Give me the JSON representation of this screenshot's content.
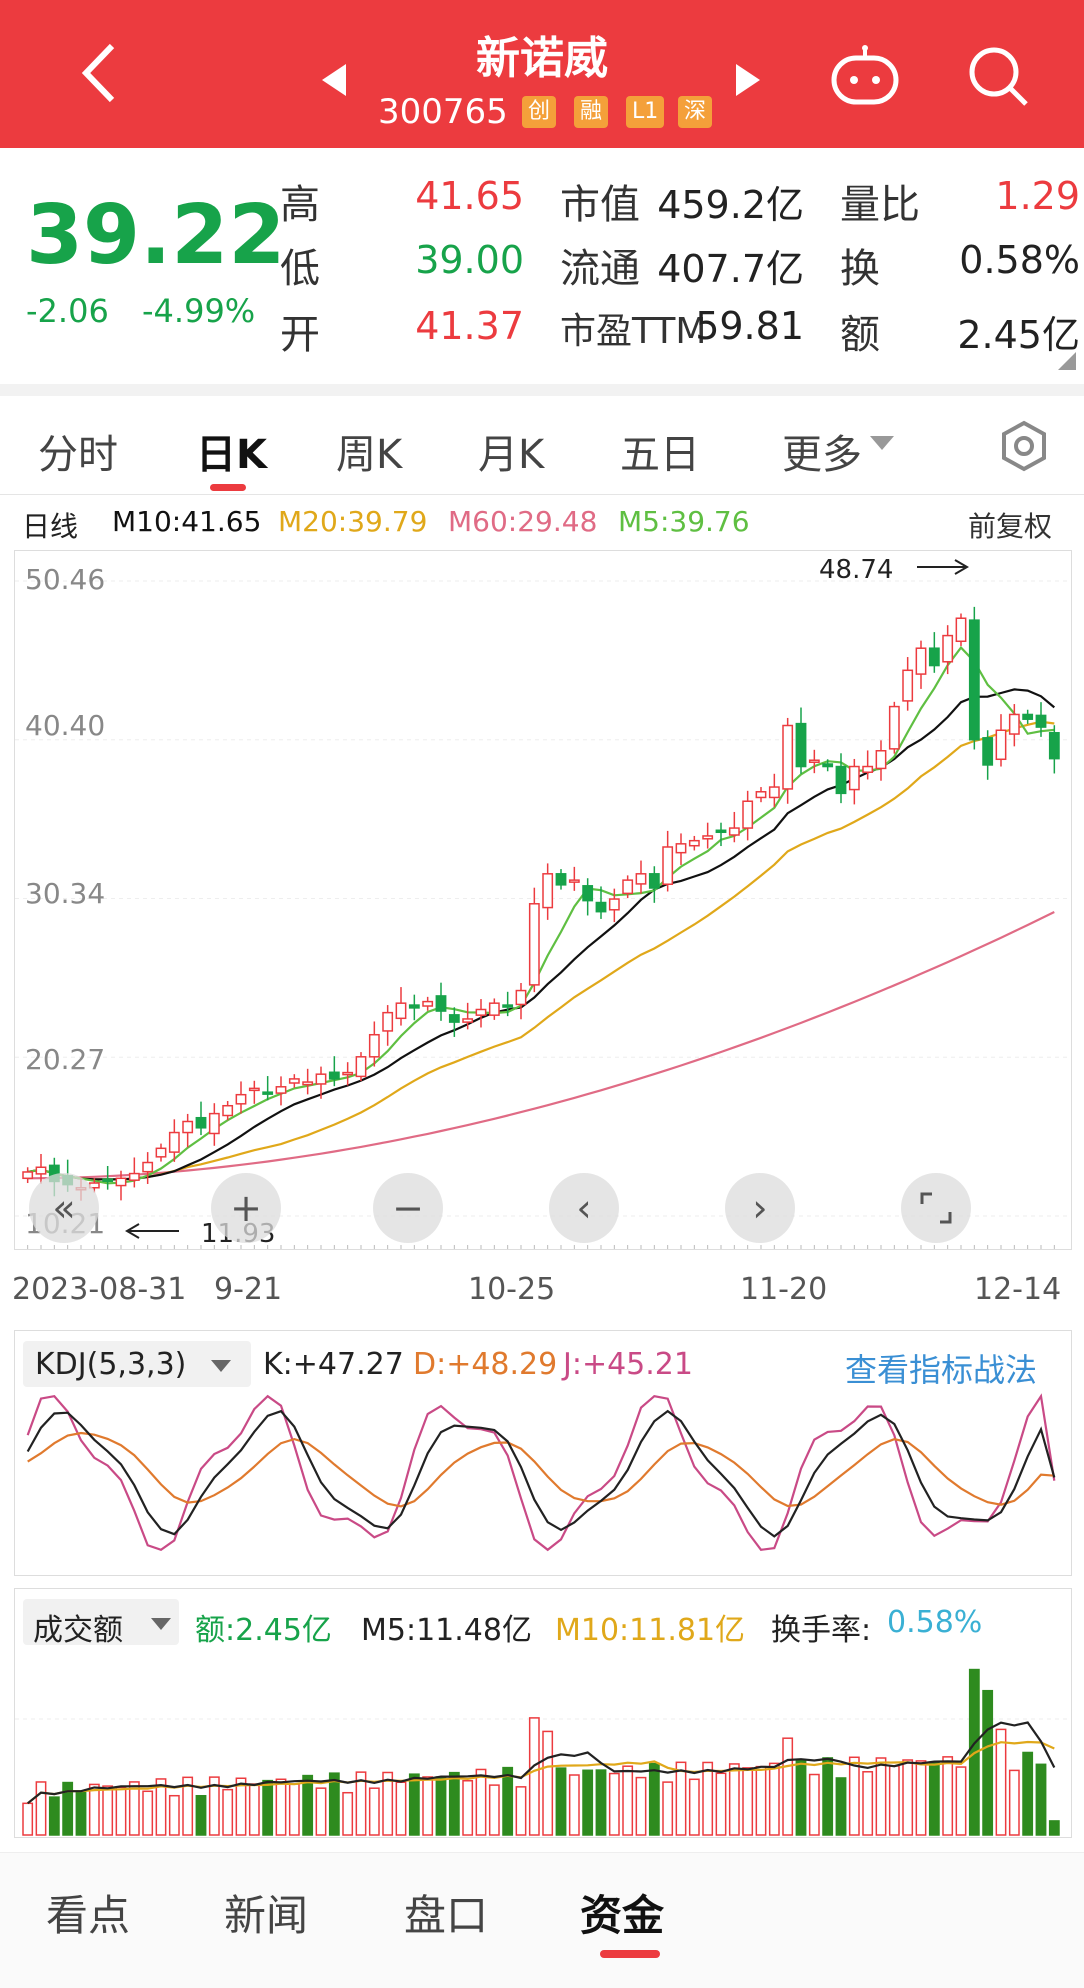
{
  "header": {
    "title": "新诺威",
    "code": "300765",
    "tags": [
      "创",
      "融",
      "L1",
      "深"
    ]
  },
  "quote": {
    "price": "39.22",
    "change": "-2.06",
    "change_pct": "-4.99%",
    "rows": [
      {
        "l1": "高",
        "v1": "41.65",
        "l2": "市值",
        "v2": "459.2亿",
        "l3": "量比",
        "v3": "1.29"
      },
      {
        "l1": "低",
        "v1": "39.00",
        "l2": "流通",
        "v2": "407.7亿",
        "l3": "换",
        "v3": "0.58%"
      },
      {
        "l1": "开",
        "v1": "41.37",
        "l2": "市盈TTM",
        "v2": "59.81",
        "l3": "额",
        "v3": "2.45亿"
      }
    ]
  },
  "tabs": [
    "分时",
    "日K",
    "周K",
    "月K",
    "五日",
    "更多"
  ],
  "ma": {
    "label": "日线",
    "m10": "M10:41.65",
    "m20": "M20:39.79",
    "m60": "M60:29.48",
    "m5": "M5:39.76",
    "adjust": "前复权"
  },
  "colors": {
    "red": "#ec3b3f",
    "green": "#17a34a",
    "m20": "#e0a81a",
    "m60": "#e06b85",
    "m5": "#5fbf42",
    "m10": "#111111",
    "blue": "#3a8fd4"
  },
  "kline": {
    "y_labels": [
      "50.46",
      "40.40",
      "30.34",
      "20.27",
      "10.21"
    ],
    "high_marker": "48.74",
    "low_marker": "11.93",
    "dates": [
      "2023-08-31",
      "9-21",
      "10-25",
      "11-20",
      "12-14"
    ]
  },
  "kdj": {
    "selector": "KDJ(5,3,3)",
    "k": "K:+47.27",
    "d": "D:+48.29",
    "j": "J:+45.21",
    "link": "查看指标战法"
  },
  "volume": {
    "selector": "成交额",
    "amount": "额:2.45亿",
    "m5": "M5:11.48亿",
    "m10": "M10:11.81亿",
    "turnover_label": "换手率:",
    "turnover": "0.58%"
  },
  "bottom_tabs": [
    "看点",
    "新闻",
    "盘口",
    "资金"
  ],
  "chart_data": {
    "type": "candlestick",
    "ylim": [
      10.21,
      50.46
    ],
    "closes": [
      13.0,
      13.3,
      12.4,
      12.2,
      12.0,
      12.3,
      12.5,
      12.6,
      12.9,
      13.6,
      14.5,
      15.5,
      16.2,
      15.8,
      16.7,
      17.2,
      17.9,
      18.3,
      18.0,
      18.4,
      18.9,
      18.7,
      19.2,
      18.9,
      19.3,
      20.3,
      21.7,
      23.1,
      23.7,
      23.4,
      23.8,
      23.2,
      22.5,
      22.7,
      23.3,
      23.7,
      23.5,
      24.5,
      30.0,
      31.9,
      31.2,
      31.5,
      30.2,
      29.5,
      30.3,
      31.5,
      31.9,
      31.0,
      33.6,
      33.8,
      34.0,
      34.3,
      34.6,
      34.8,
      36.5,
      37.1,
      37.4,
      41.3,
      38.7,
      39.1,
      38.7,
      37.0,
      38.7,
      38.7,
      39.7,
      42.5,
      44.8,
      46.2,
      45.1,
      47.0,
      48.1,
      40.4,
      38.8,
      41.0,
      42.0,
      41.7,
      41.2,
      39.2
    ],
    "high": 48.74,
    "low": 11.93
  }
}
